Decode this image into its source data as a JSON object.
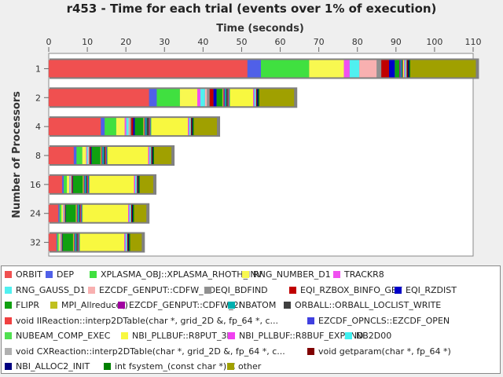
{
  "chart_data": {
    "type": "bar",
    "orientation": "horizontal",
    "stacked": true,
    "title": "r453 - Time for each trial (events over 1% of execution)",
    "xlabel": "Time (seconds)",
    "ylabel": "Number of Processors",
    "xlim": [
      0,
      110
    ],
    "x_ticks": [
      "0",
      "10",
      "20",
      "30",
      "40",
      "50",
      "60",
      "70",
      "80",
      "90",
      "100",
      "110"
    ],
    "x_axis_position": "top",
    "categories": [
      "1",
      "2",
      "4",
      "8",
      "16",
      "24",
      "32"
    ],
    "legend_position": "bottom",
    "series": [
      {
        "name": "ORBIT",
        "color": "#f05050",
        "values": [
          51.5,
          26,
          13.5,
          6.5,
          3.5,
          2.5,
          2
        ]
      },
      {
        "name": "DEP",
        "color": "#5060e8",
        "values": [
          3.5,
          2,
          1,
          0.7,
          0.4,
          0.3,
          0.2
        ]
      },
      {
        "name": "XPLASMA_OBJ::XPLASMA_RHOTH_INV",
        "color": "#40e040",
        "values": [
          12.5,
          6,
          3,
          1.5,
          0.8,
          0.5,
          0.4
        ]
      },
      {
        "name": "RNG_NUMBER_D1",
        "color": "#f8f850",
        "values": [
          9,
          4.5,
          2.2,
          1,
          0.6,
          0.4,
          0.3
        ]
      },
      {
        "name": "TRACKR8",
        "color": "#f050f0",
        "values": [
          1.5,
          0.8,
          0.4,
          0.2,
          0.1,
          0.1,
          0.1
        ]
      },
      {
        "name": "RNG_GAUSS_D1",
        "color": "#50f0f0",
        "values": [
          2.5,
          1.2,
          0.6,
          0.3,
          0.2,
          0.1,
          0.1
        ]
      },
      {
        "name": "EZCDF_GENPUT::CDFW_1D",
        "color": "#f8b0b0",
        "values": [
          4.5,
          0.5,
          0.3,
          0.2,
          0.2,
          0.2,
          0.2
        ]
      },
      {
        "name": "EQI_BDFIND",
        "color": "#909090",
        "values": [
          1.2,
          0.7,
          0.4,
          0.2,
          0.2,
          0.1,
          0.1
        ]
      },
      {
        "name": "EQI_RZBOX_BINFO_GET",
        "color": "#c00000",
        "values": [
          2,
          1,
          0.5,
          0.3,
          0.2,
          0.1,
          0.1
        ]
      },
      {
        "name": "EQI_RZDIST",
        "color": "#0000c8",
        "values": [
          1.5,
          0.8,
          0.4,
          0.2,
          0.1,
          0.1,
          0.1
        ]
      },
      {
        "name": "FLIPR",
        "color": "#10a010",
        "values": [
          1.2,
          1.5,
          2.2,
          2.3,
          2.5,
          2.6,
          2.7
        ]
      },
      {
        "name": "MPI_Allreduce()",
        "color": "#c0c020",
        "values": [
          0,
          0.3,
          0.3,
          0.3,
          0.3,
          0.3,
          0.3
        ]
      },
      {
        "name": "EZCDF_GENPUT::CDFW_2I",
        "color": "#a000a0",
        "values": [
          0.3,
          0.3,
          0.2,
          0.2,
          0.2,
          0.2,
          0.2
        ]
      },
      {
        "name": "NBATOM",
        "color": "#00b0b0",
        "values": [
          0.3,
          0.4,
          0.4,
          0.4,
          0.4,
          0.4,
          0.4
        ]
      },
      {
        "name": "ORBALL::ORBALL_LOCLIST_WRITE",
        "color": "#404040",
        "values": [
          0.3,
          0.4,
          0.6,
          0.4,
          0.3,
          0.3,
          0.3
        ]
      },
      {
        "name": "void IIReaction::interp2DTable(char *, grid_2D &, fp_64 *, c...",
        "color": "#f04040",
        "values": [
          0,
          0.2,
          0.2,
          0.2,
          0.2,
          0.2,
          0.2
        ]
      },
      {
        "name": "EZCDF_OPNCLS::EZCDF_OPEN",
        "color": "#4040e0",
        "values": [
          0,
          0.2,
          0.2,
          0.2,
          0.2,
          0.2,
          0.2
        ]
      },
      {
        "name": "NUBEAM_COMP_EXEC",
        "color": "#50e050",
        "values": [
          0,
          0.2,
          0.2,
          0.2,
          0.2,
          0.2,
          0.2
        ]
      },
      {
        "name": "NBI_PLLBUF::R8PUT_3D",
        "color": "#f8f840",
        "values": [
          0.3,
          6,
          9.5,
          10.5,
          11.5,
          11.8,
          11.5
        ]
      },
      {
        "name": "NBI_PLLBUF::R8BUF_EXPAND",
        "color": "#f040f0",
        "values": [
          0.2,
          0.3,
          0.3,
          0.3,
          0.3,
          0.3,
          0.3
        ]
      },
      {
        "name": "NB2D00",
        "color": "#40f0f0",
        "values": [
          0.2,
          0.3,
          0.3,
          0.3,
          0.3,
          0.3,
          0.3
        ]
      },
      {
        "name": "void CXReaction::interp2DTable(char *, grid_2D &, fp_64 *, c...",
        "color": "#b0b0b0",
        "values": [
          0.3,
          0.2,
          0.2,
          0.2,
          0.2,
          0.2,
          0.2
        ]
      },
      {
        "name": "void getparam(char *, fp_64 *)",
        "color": "#800000",
        "values": [
          0.3,
          0.2,
          0.2,
          0.2,
          0.2,
          0.2,
          0.2
        ]
      },
      {
        "name": "NBI_ALLOC2_INIT",
        "color": "#000080",
        "values": [
          0.3,
          0.3,
          0.2,
          0.2,
          0.2,
          0.2,
          0.2
        ]
      },
      {
        "name": "int fsystem_(const char *) C",
        "color": "#008000",
        "values": [
          0.3,
          0.3,
          0.3,
          0.3,
          0.3,
          0.3,
          0.3
        ]
      },
      {
        "name": "other",
        "color": "#a0a000",
        "values": [
          17,
          9,
          6,
          4.5,
          3.5,
          3.2,
          3
        ]
      }
    ]
  }
}
